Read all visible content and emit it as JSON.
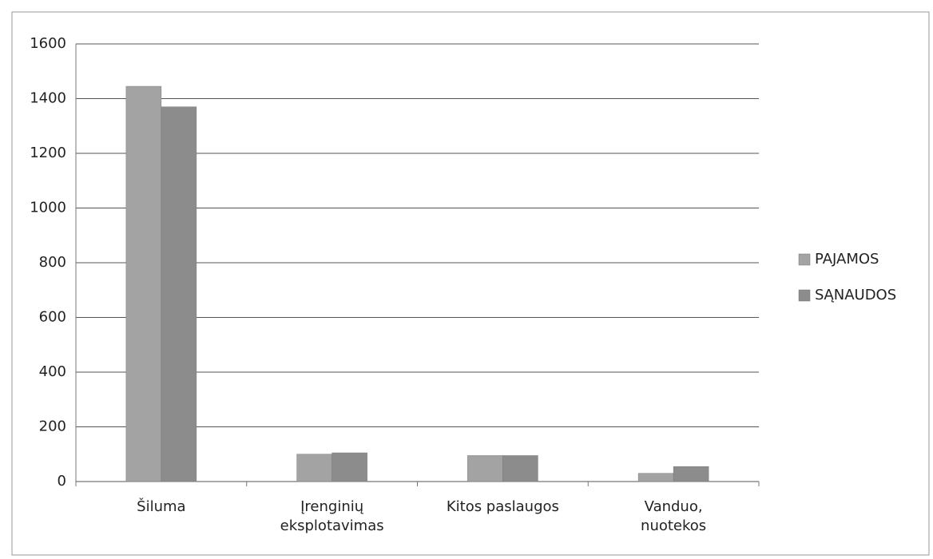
{
  "chart_data": {
    "type": "bar",
    "categories": [
      "Šiluma",
      "Įrenginių eksplotavimas",
      "Kitos paslaugos",
      "Vanduo, nuotekos"
    ],
    "series": [
      {
        "name": "PAJAMOS",
        "color": "#a3a3a3",
        "values": [
          1445,
          100,
          95,
          30
        ]
      },
      {
        "name": "SĄNAUDOS",
        "color": "#8c8c8c",
        "values": [
          1370,
          105,
          95,
          55
        ]
      }
    ],
    "ylim": [
      0,
      1600
    ],
    "yticks": [
      0,
      200,
      400,
      600,
      800,
      1000,
      1200,
      1400,
      1600
    ],
    "grid": true,
    "legend": "right"
  }
}
